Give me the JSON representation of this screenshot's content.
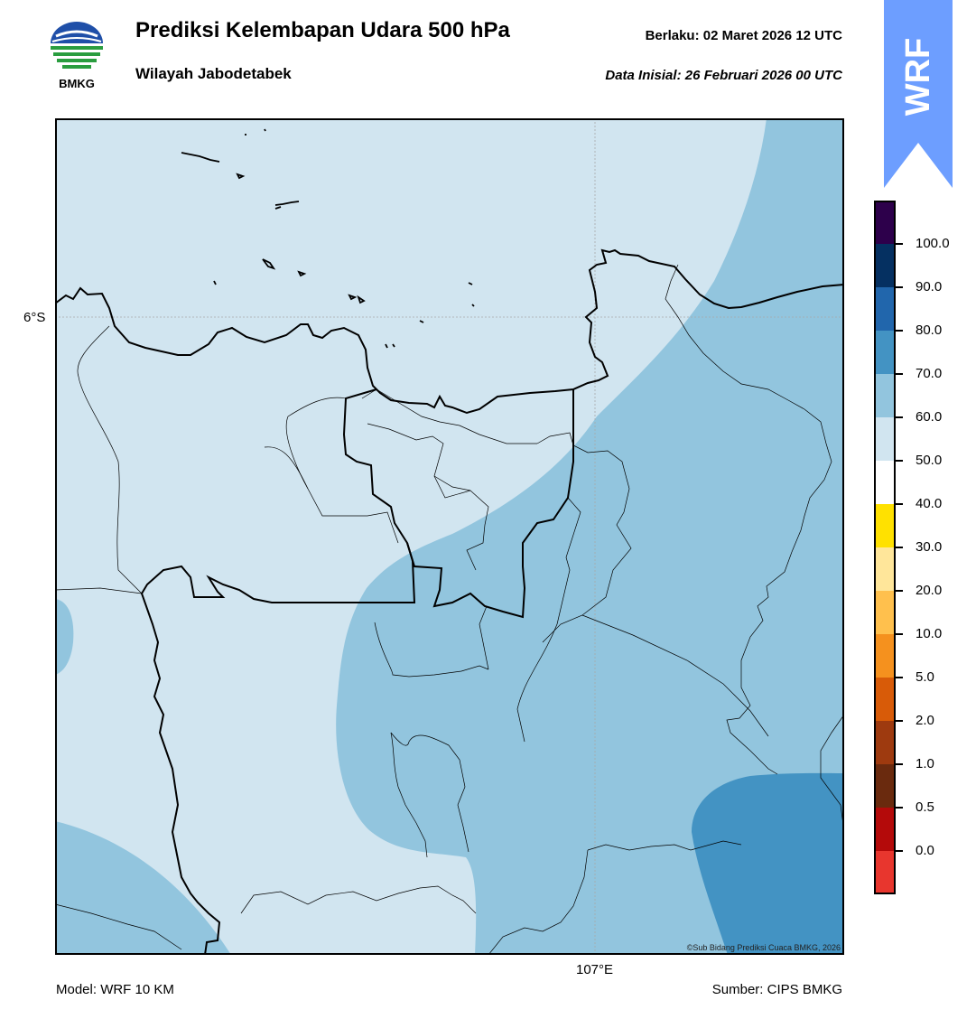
{
  "header": {
    "title": "Prediksi Kelembapan Udara 500 hPa",
    "subtitle": "Wilayah Jabodetabek",
    "valid_label": "Berlaku:  02 Maret 2026 12 UTC",
    "init_label": "Data Inisial:  26 Februari 2026 00 UTC"
  },
  "logo": {
    "text": "BMKG",
    "icon": "bmkg-logo-icon"
  },
  "badge": {
    "text": "WRF",
    "color": "#6d9eff"
  },
  "map": {
    "lat_label": "6°S",
    "lon_label": "107°E",
    "copyright": "©Sub Bidang Prediksi Cuaca BMKG, 2026",
    "fill_colors": {
      "band_50_60": "#d1e5f0",
      "band_60_70": "#92c5de",
      "band_70_80": "#4393c3"
    }
  },
  "colorbar": {
    "labels": [
      "100.0",
      "90.0",
      "80.0",
      "70.0",
      "60.0",
      "50.0",
      "40.0",
      "30.0",
      "20.0",
      "10.0",
      "5.0",
      "2.0",
      "1.0",
      "0.5",
      "0.0"
    ],
    "colors": [
      "#2d004b",
      "#053061",
      "#2166ac",
      "#4393c3",
      "#92c5de",
      "#d1e5f0",
      "#ffffff",
      "#ffe100",
      "#ffe69a",
      "#ffc04d",
      "#f5911e",
      "#d85b08",
      "#9e3a0f",
      "#6a2a0e",
      "#b40a0a",
      "#e8362e"
    ]
  },
  "footer": {
    "model": "Model: WRF 10 KM",
    "source": "Sumber: CIPS BMKG"
  }
}
